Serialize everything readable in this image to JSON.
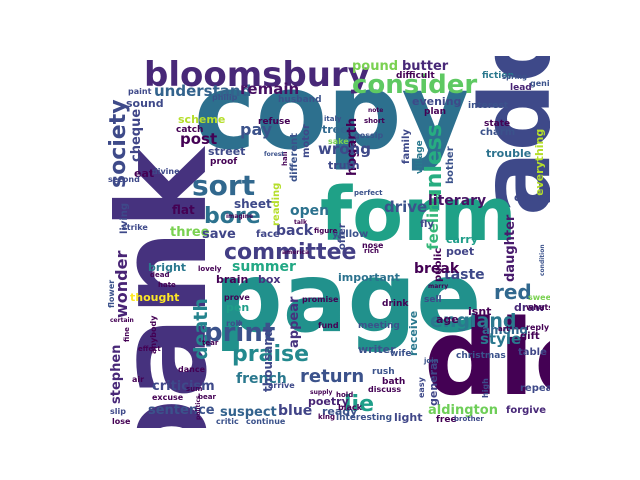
{
  "words": [
    {
      "key": "copy",
      "text": "copy",
      "color": "#2d708e"
    },
    {
      "key": "page",
      "text": "page",
      "color": "#21918c"
    },
    {
      "key": "bank",
      "text": "bank",
      "color": "#46327e"
    },
    {
      "key": "die",
      "text": "die",
      "color": "#440154"
    },
    {
      "key": "add",
      "text": "add",
      "color": "#3e4989"
    },
    {
      "key": "form",
      "text": "form",
      "color": "#1fa187"
    },
    {
      "key": "bloomsbury",
      "text": "bloomsbury",
      "color": "#482878"
    },
    {
      "key": "consider",
      "text": "consider",
      "color": "#5ec962"
    },
    {
      "key": "sort",
      "text": "sort",
      "color": "#31688e"
    },
    {
      "key": "committee",
      "text": "committee",
      "color": "#433e85"
    },
    {
      "key": "print",
      "text": "print",
      "color": "#3b528b"
    },
    {
      "key": "praise",
      "text": "praise",
      "color": "#23898e"
    },
    {
      "key": "bore",
      "text": "bore",
      "color": "#2c728e"
    },
    {
      "key": "society",
      "text": "society",
      "color": "#3e4a89"
    },
    {
      "key": "unless",
      "text": "unless",
      "color": "#27ad81"
    },
    {
      "key": "feeling",
      "text": "feeling",
      "color": "#35b779"
    },
    {
      "key": "red",
      "text": "red",
      "color": "#31688e"
    },
    {
      "key": "england",
      "text": "england",
      "color": "#2a788e"
    },
    {
      "key": "lie",
      "text": "lie",
      "color": "#1f9e89"
    },
    {
      "key": "death",
      "text": "death",
      "color": "#25848e"
    },
    {
      "key": "return",
      "text": "return",
      "color": "#3b528b"
    },
    {
      "key": "wonder",
      "text": "wonder",
      "color": "#482475"
    },
    {
      "key": "post",
      "text": "post",
      "color": "#440154"
    },
    {
      "key": "pay",
      "text": "pay",
      "color": "#3b528b"
    },
    {
      "key": "cheque",
      "text": "cheque",
      "color": "#404688"
    },
    {
      "key": "understand",
      "text": "understand",
      "color": "#33638d"
    },
    {
      "key": "remain",
      "text": "remain",
      "color": "#471063"
    },
    {
      "key": "pound",
      "text": "pound",
      "color": "#7ad151"
    },
    {
      "key": "butter",
      "text": "butter",
      "color": "#482878"
    },
    {
      "key": "hogarth",
      "text": "hogarth",
      "color": "#440154"
    },
    {
      "key": "wrong",
      "text": "wrong",
      "color": "#3e4989"
    },
    {
      "key": "drive",
      "text": "drive",
      "color": "#3b528b"
    },
    {
      "key": "literary",
      "text": "literary",
      "color": "#471365"
    },
    {
      "key": "open",
      "text": "open",
      "color": "#2c728e"
    },
    {
      "key": "back",
      "text": "back",
      "color": "#414487"
    },
    {
      "key": "summer",
      "text": "summer",
      "color": "#22a884"
    },
    {
      "key": "french",
      "text": "french",
      "color": "#2a788e"
    },
    {
      "key": "blue",
      "text": "blue",
      "color": "#414487"
    },
    {
      "key": "sentence",
      "text": "sentence",
      "color": "#3b528b"
    },
    {
      "key": "suspect",
      "text": "suspect",
      "color": "#33638d"
    },
    {
      "key": "aldington",
      "text": "aldington",
      "color": "#6ece58"
    },
    {
      "key": "stephen",
      "text": "stephen",
      "color": "#482878"
    },
    {
      "key": "style",
      "text": "style",
      "color": "#2a788e"
    },
    {
      "key": "among",
      "text": "among",
      "color": "#31688e"
    },
    {
      "key": "taste",
      "text": "taste",
      "color": "#3e4989"
    },
    {
      "key": "break",
      "text": "break",
      "color": "#440154"
    },
    {
      "key": "daughter",
      "text": "daughter",
      "color": "#481a6c"
    },
    {
      "key": "criticism",
      "text": "criticism",
      "color": "#3e4989"
    },
    {
      "key": "thousand",
      "text": "thousand",
      "color": "#3e4989"
    },
    {
      "key": "appear",
      "text": "appear",
      "color": "#46327e"
    },
    {
      "key": "three",
      "text": "three",
      "color": "#7ad151"
    },
    {
      "key": "save",
      "text": "save",
      "color": "#404688"
    },
    {
      "key": "sheet",
      "text": "sheet",
      "color": "#3e4989"
    },
    {
      "key": "flat",
      "text": "flat",
      "color": "#440154"
    },
    {
      "key": "poetry",
      "text": "poetry",
      "color": "#482475"
    },
    {
      "key": "ready",
      "text": "ready",
      "color": "#3b528b"
    },
    {
      "key": "light",
      "text": "light",
      "color": "#404688"
    },
    {
      "key": "lie2",
      "text": "thought",
      "color": "#fde725"
    },
    {
      "key": "scheme",
      "text": "scheme",
      "color": "#b5de2b"
    },
    {
      "key": "eat",
      "text": "eat",
      "color": "#440154"
    },
    {
      "key": "bright",
      "text": "bright",
      "color": "#2a788e"
    },
    {
      "key": "brain",
      "text": "brain",
      "color": "#440154"
    },
    {
      "key": "box",
      "text": "box",
      "color": "#46327e"
    },
    {
      "key": "pen",
      "text": "pen",
      "color": "#1f9e89"
    },
    {
      "key": "street",
      "text": "street",
      "color": "#3e4989"
    },
    {
      "key": "tree",
      "text": "tree",
      "color": "#31688e"
    },
    {
      "key": "sound",
      "text": "sound",
      "color": "#3e4989"
    },
    {
      "key": "truth",
      "text": "truth",
      "color": "#3e4989"
    },
    {
      "key": "evening",
      "text": "evening",
      "color": "#3e4989"
    },
    {
      "key": "trouble",
      "text": "trouble",
      "color": "#2c728e"
    },
    {
      "key": "carry",
      "text": "carry",
      "color": "#1f9e89"
    },
    {
      "key": "poet",
      "text": "poet",
      "color": "#414487"
    },
    {
      "key": "age",
      "text": "age",
      "color": "#440154"
    },
    {
      "key": "isnt",
      "text": "isnt",
      "color": "#440154"
    },
    {
      "key": "draw",
      "text": "draw",
      "color": "#482878"
    },
    {
      "key": "everything",
      "text": "everything",
      "color": "#b5de2b"
    },
    {
      "key": "change",
      "text": "change",
      "color": "#3e4989"
    },
    {
      "key": "receive",
      "text": "receive",
      "color": "#2a788e"
    },
    {
      "key": "important",
      "text": "important",
      "color": "#2c728e"
    },
    {
      "key": "general",
      "text": "general",
      "color": "#404688"
    },
    {
      "key": "writer",
      "text": "writer",
      "color": "#3b528b"
    },
    {
      "key": "forgive",
      "text": "forgive",
      "color": "#482878"
    },
    {
      "key": "repeat",
      "text": "repeat",
      "color": "#3e4989"
    },
    {
      "key": "table",
      "text": "table",
      "color": "#404688"
    },
    {
      "key": "christmas",
      "text": "christmas",
      "color": "#3b528b"
    },
    {
      "key": "gift",
      "text": "gift",
      "color": "#440154"
    },
    {
      "key": "public",
      "text": "public",
      "color": "#440154"
    },
    {
      "key": "family",
      "text": "family",
      "color": "#3e4989"
    },
    {
      "key": "bother",
      "text": "bother",
      "color": "#3b528b"
    },
    {
      "key": "plan",
      "text": "plan",
      "color": "#440154"
    },
    {
      "key": "interest",
      "text": "interest",
      "color": "#3b528b"
    },
    {
      "key": "charm",
      "text": "charm",
      "color": "#3b528b"
    },
    {
      "key": "lead",
      "text": "lead",
      "color": "#482475"
    },
    {
      "key": "fiction",
      "text": "fiction",
      "color": "#2a788e"
    },
    {
      "key": "state",
      "text": "state",
      "color": "#440154"
    },
    {
      "key": "village",
      "text": "village",
      "color": "#2a788e"
    },
    {
      "key": "yellow",
      "text": "yellow",
      "color": "#3b528b"
    },
    {
      "key": "offer",
      "text": "offer",
      "color": "#3e4989"
    },
    {
      "key": "motor",
      "text": "motor",
      "color": "#3e4989"
    },
    {
      "key": "different",
      "text": "different",
      "color": "#3b528b"
    },
    {
      "key": "reading",
      "text": "reading",
      "color": "#b5de2b"
    },
    {
      "key": "face",
      "text": "face",
      "color": "#404688"
    },
    {
      "key": "living",
      "text": "living",
      "color": "#3e4989"
    },
    {
      "key": "proof",
      "text": "proof",
      "color": "#440154"
    },
    {
      "key": "catch",
      "text": "catch",
      "color": "#440154"
    },
    {
      "key": "paint",
      "text": "paint",
      "color": "#3e4989"
    },
    {
      "key": "philip",
      "text": "philip",
      "color": "#3b528b"
    },
    {
      "key": "husband",
      "text": "husband",
      "color": "#3b528b"
    },
    {
      "key": "refuse",
      "text": "refuse",
      "color": "#440154"
    },
    {
      "key": "difficult",
      "text": "difficult",
      "color": "#440154"
    },
    {
      "key": "prove",
      "text": "prove",
      "color": "#440154"
    },
    {
      "key": "promise",
      "text": "promise",
      "color": "#440154"
    },
    {
      "key": "roll",
      "text": "roll",
      "color": "#3b528b"
    },
    {
      "key": "fund",
      "text": "fund",
      "color": "#440154"
    },
    {
      "key": "meeting",
      "text": "meeting",
      "color": "#3b528b"
    },
    {
      "key": "wife",
      "text": "wife",
      "color": "#3b528b"
    },
    {
      "key": "drink",
      "text": "drink",
      "color": "#440154"
    },
    {
      "key": "sell",
      "text": "sell",
      "color": "#3e4989"
    },
    {
      "key": "rush",
      "text": "rush",
      "color": "#3b528b"
    },
    {
      "key": "bath",
      "text": "bath",
      "color": "#440154"
    },
    {
      "key": "discuss",
      "text": "discuss",
      "color": "#440154"
    },
    {
      "key": "free",
      "text": "free",
      "color": "#440154"
    },
    {
      "key": "brother",
      "text": "brother",
      "color": "#3e4989"
    },
    {
      "key": "interesting",
      "text": "interesting",
      "color": "#3b528b"
    },
    {
      "key": "king",
      "text": "king",
      "color": "#440154"
    },
    {
      "key": "arrive",
      "text": "arrive",
      "color": "#3e4989"
    },
    {
      "key": "continue",
      "text": "continue",
      "color": "#3b528b"
    },
    {
      "key": "critic",
      "text": "critic",
      "color": "#3b528b"
    },
    {
      "key": "lose",
      "text": "lose",
      "color": "#440154"
    },
    {
      "key": "slip",
      "text": "slip",
      "color": "#3e4989"
    },
    {
      "key": "dance",
      "text": "dance",
      "color": "#440154"
    },
    {
      "key": "excuse",
      "text": "excuse",
      "color": "#440154"
    },
    {
      "key": "air",
      "text": "air",
      "color": "#440154"
    },
    {
      "key": "divine",
      "text": "divine",
      "color": "#3e4989"
    },
    {
      "key": "second",
      "text": "second",
      "color": "#3e4989"
    },
    {
      "key": "strike",
      "text": "strike",
      "color": "#3e4989"
    },
    {
      "key": "flower",
      "text": "flower",
      "color": "#3b528b"
    },
    {
      "key": "anybody",
      "text": "anybody",
      "color": "#440154"
    },
    {
      "key": "effect",
      "text": "effect",
      "color": "#440154"
    },
    {
      "key": "hate",
      "text": "hate",
      "color": "#440154"
    },
    {
      "key": "lovely",
      "text": "lovely",
      "color": "#440154"
    },
    {
      "key": "dead",
      "text": "dead",
      "color": "#440154"
    },
    {
      "key": "sweet",
      "text": "sweet",
      "color": "#7ad151"
    },
    {
      "key": "whats",
      "text": "whats",
      "color": "#440154"
    },
    {
      "key": "reply",
      "text": "reply",
      "color": "#440154"
    },
    {
      "key": "nose",
      "text": "nose",
      "color": "#440154"
    },
    {
      "key": "gossip",
      "text": "gossip",
      "color": "#3b528b"
    },
    {
      "key": "sake",
      "text": "sake",
      "color": "#7ad151"
    },
    {
      "key": "italy",
      "text": "italy",
      "color": "#3b528b"
    },
    {
      "key": "genius",
      "text": "genius",
      "color": "#3b528b"
    },
    {
      "key": "spring",
      "text": "spring",
      "color": "#3b528b"
    },
    {
      "key": "easy",
      "text": "easy",
      "color": "#3e4989"
    },
    {
      "key": "high",
      "text": "high",
      "color": "#3e4989"
    },
    {
      "key": "join",
      "text": "join",
      "color": "#3b528b"
    },
    {
      "key": "fly",
      "text": "fly",
      "color": "#3e4989"
    },
    {
      "key": "gift2",
      "text": "certain",
      "color": "#440154"
    },
    {
      "key": "condition",
      "text": "condition",
      "color": "#3b528b"
    },
    {
      "key": "tear",
      "text": "tear",
      "color": "#440154"
    },
    {
      "key": "sum",
      "text": "sum",
      "color": "#440154"
    },
    {
      "key": "fine",
      "text": "fine",
      "color": "#440154"
    },
    {
      "key": "bear",
      "text": "bear",
      "color": "#440154"
    },
    {
      "key": "short",
      "text": "short",
      "color": "#440154"
    },
    {
      "key": "note",
      "text": "note",
      "color": "#440154"
    },
    {
      "key": "figure",
      "text": "figure",
      "color": "#440154"
    },
    {
      "key": "rich",
      "text": "rich",
      "color": "#440154"
    },
    {
      "key": "art",
      "text": "art",
      "color": "#440154"
    },
    {
      "key": "marry",
      "text": "marry",
      "color": "#440154"
    },
    {
      "key": "hall",
      "text": "hall",
      "color": "#440154"
    },
    {
      "key": "talk",
      "text": "talk",
      "color": "#440154"
    },
    {
      "key": "forest",
      "text": "forest",
      "color": "#3b528b"
    },
    {
      "key": "perfect",
      "text": "perfect",
      "color": "#3b528b"
    },
    {
      "key": "america",
      "text": "america",
      "color": "#440154"
    },
    {
      "key": "hold",
      "text": "hold",
      "color": "#440154"
    },
    {
      "key": "supply",
      "text": "supply",
      "color": "#440154"
    },
    {
      "key": "imagine",
      "text": "imagine",
      "color": "#440154"
    },
    {
      "key": "politics",
      "text": "politics",
      "color": "#440154"
    },
    {
      "key": "black",
      "text": "black",
      "color": "#440154"
    }
  ]
}
